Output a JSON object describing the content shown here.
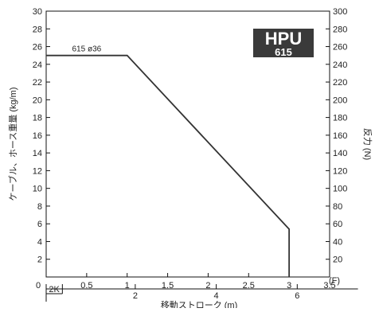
{
  "chart_data": {
    "type": "line",
    "x_unit_label": "(F)",
    "y_left_label": "ケーブル、ホース重量 (kg/m)",
    "y_right_label": "反力 (N)",
    "x_secondary_label": "移動ストローク (m)",
    "xlim": [
      0,
      3.5
    ],
    "ylim_left": [
      0,
      30
    ],
    "ylim_right": [
      0,
      300
    ],
    "x_ticks": [
      "0",
      "0.5",
      "1",
      "1.5",
      "2",
      "2.5",
      "3",
      "3.5"
    ],
    "x_tick_values": [
      0,
      0.5,
      1,
      1.5,
      2,
      2.5,
      3,
      3.5
    ],
    "y_left_ticks": [
      2,
      4,
      6,
      8,
      10,
      12,
      14,
      16,
      18,
      20,
      22,
      24,
      26,
      28,
      30
    ],
    "y_right_ticks": [
      20,
      40,
      60,
      80,
      100,
      120,
      140,
      160,
      180,
      200,
      220,
      240,
      260,
      280,
      300
    ],
    "secondary_axis": {
      "start_label": "2K",
      "ticks": [
        {
          "label": "2",
          "x": 1.1
        },
        {
          "label": "4",
          "x": 2.1
        },
        {
          "label": "6",
          "x": 3.1
        }
      ],
      "range": [
        0.2,
        3.9
      ]
    },
    "series": [
      {
        "name": "615 ø36",
        "x": [
          0,
          1.0,
          3.0,
          3.0
        ],
        "y": [
          25,
          25,
          5.4,
          0
        ]
      }
    ],
    "grid": false,
    "badge": {
      "line1": "HPU",
      "line2": "615",
      "color": "#3a3a3a"
    }
  }
}
